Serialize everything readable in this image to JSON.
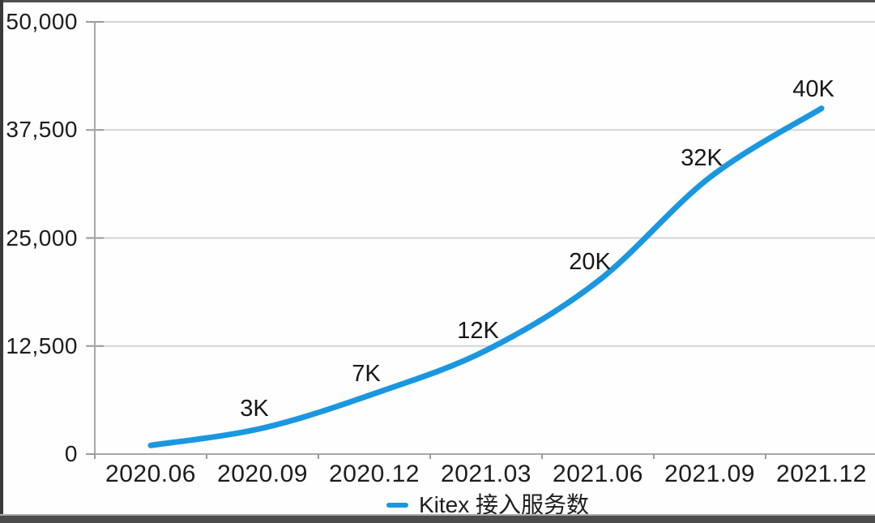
{
  "window": {
    "background": "#fefefe",
    "top_edge_color": "#4f4f4f",
    "left_edge_color": "#3a3a3a",
    "bottom_bar_color": "#4c4c4c"
  },
  "chart_data": {
    "type": "line",
    "title": "",
    "xlabel": "",
    "ylabel": "",
    "categories": [
      "2020.06",
      "2020.09",
      "2020.12",
      "2021.03",
      "2021.06",
      "2021.09",
      "2021.12"
    ],
    "series": [
      {
        "name": "Kitex 接入服务数",
        "values": [
          1000,
          3000,
          7000,
          12000,
          20000,
          32000,
          40000
        ],
        "point_labels": [
          "",
          "3K",
          "7K",
          "12K",
          "20K",
          "32K",
          "40K"
        ],
        "color": "#1a97e0",
        "line_width": 7,
        "smooth": true
      }
    ],
    "ylim": [
      0,
      50000
    ],
    "yticks": [
      0,
      12500,
      25000,
      37500,
      50000
    ],
    "ytick_labels": [
      "0",
      "12,500",
      "25,000",
      "37,500",
      "50,000"
    ],
    "grid": true,
    "gridline_color": "#d4d4d4",
    "axis_color": "#a8a8a8",
    "tick_color": "#9a9a9a",
    "text_color": "#1c1c1c",
    "legend_position": "bottom"
  },
  "legend": {
    "label": "Kitex 接入服务数",
    "swatch_color": "#1a97e0"
  }
}
